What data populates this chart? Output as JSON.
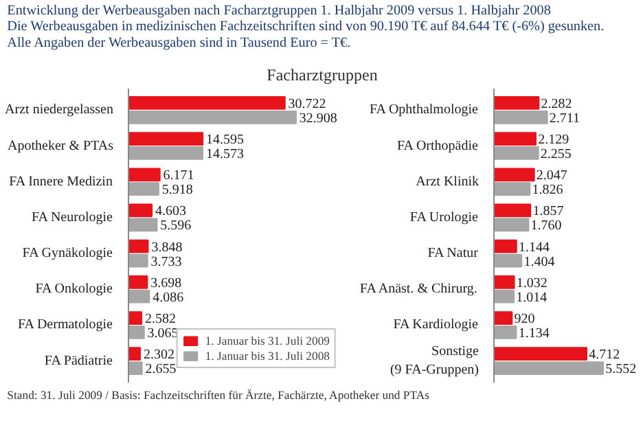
{
  "chart_data": [
    {
      "type": "bar",
      "orientation": "horizontal",
      "title": "Entwicklung der Werbeausgaben nach Facharztgruppen 1. Halbjahr 2009 versus 1. Halbjahr 2008",
      "subtitle": "Die Werbeausgaben in medizinischen Fachzeitschriften sind von 90.190 T€ auf 84.644 T€ (-6%) gesunken.\nAlle Angaben der Werbeausgaben sind in Tausend Euro = T€.",
      "annotations": [
        "Facharztgruppen",
        "Stand: 31. Juli 2009 / Basis: Fachzeitschriften für Ärzte, Fachärzte, Apotheker und PTAs"
      ],
      "categories": [
        "Arzt niedergelassen",
        "Apotheker & PTAs",
        "FA Innere Medizin",
        "FA Neurologie",
        "FA Gynäkologie",
        "FA Onkologie",
        "FA Dermatologie",
        "FA Pädiatrie"
      ],
      "series": [
        {
          "name": "1. Januar bis 31. Juli 2009",
          "color": "#e8141c",
          "values": [
            30722,
            14595,
            6171,
            4603,
            3848,
            3698,
            2582,
            2302
          ],
          "value_labels": [
            "30.722",
            "14.595",
            "6.171",
            "4.603",
            "3.848",
            "3.698",
            "2.582",
            "2.302"
          ]
        },
        {
          "name": "1. Januar bis 31. Juli 2008",
          "color": "#a6a6a6",
          "values": [
            32908,
            14573,
            5918,
            5596,
            3733,
            4086,
            3065,
            2655
          ],
          "value_labels": [
            "32.908",
            "14.573",
            "5.918",
            "5.596",
            "3.733",
            "4.086",
            "3.065",
            "2.655"
          ]
        }
      ],
      "legend": "bottom right"
    },
    {
      "type": "bar",
      "orientation": "horizontal",
      "categories": [
        "FA Ophthalmologie",
        "FA Orthopädie",
        "Arzt Klinik",
        "FA Urologie",
        "FA Natur",
        "FA Anäst. & Chirurg.",
        "FA Kardiologie",
        "Sonstige\n(9 FA-Gruppen)"
      ],
      "series": [
        {
          "color": "#e8141c",
          "values": [
            2282,
            2129,
            2047,
            1857,
            1144,
            1032,
            920,
            4712
          ],
          "value_labels": [
            "2.282",
            "2.129",
            "2.047",
            "1.857",
            "1.144",
            "1.032",
            "920",
            "4.712"
          ]
        },
        {
          "color": "#a6a6a6",
          "values": [
            2711,
            2255,
            1826,
            1760,
            1404,
            1014,
            1134,
            5552
          ],
          "value_labels": [
            "2.711",
            "2.255",
            "1.826",
            "1.760",
            "1.404",
            "1.014",
            "1.134",
            "5.552"
          ]
        }
      ]
    }
  ]
}
